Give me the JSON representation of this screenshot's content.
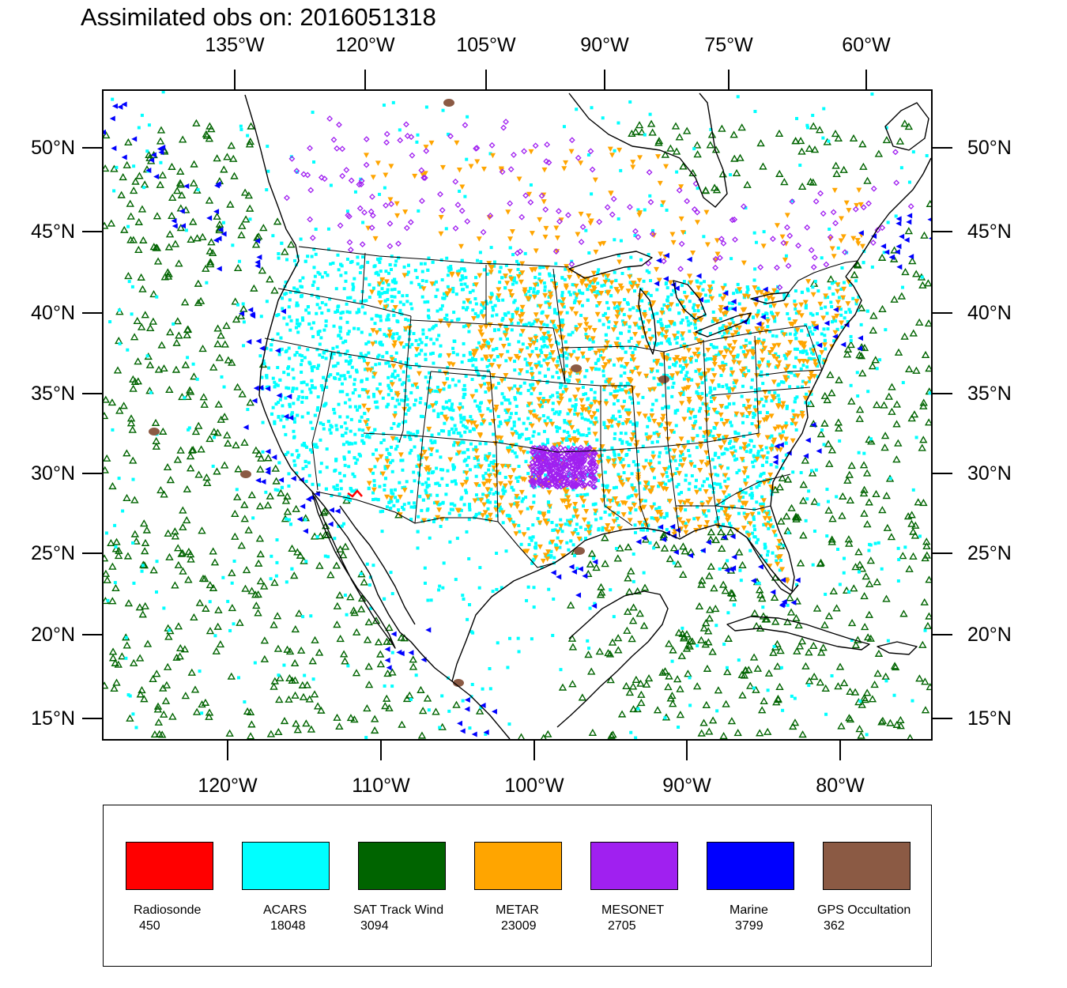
{
  "title": "Assimilated obs on: 2016051318",
  "top_lon_labels": [
    "135°W",
    "120°W",
    "105°W",
    "90°W",
    "75°W",
    "60°W"
  ],
  "bottom_lon_labels": [
    "120°W",
    "110°W",
    "100°W",
    "90°W",
    "80°W"
  ],
  "lat_labels": [
    "50°N",
    "45°N",
    "40°N",
    "35°N",
    "30°N",
    "25°N",
    "20°N",
    "15°N"
  ],
  "map_extent": {
    "lon_min": -127.5,
    "lon_max": -73.5,
    "lat_min": 14.0,
    "lat_max": 53.5,
    "projection": "lambert-conformal"
  },
  "legend": [
    {
      "name": "Radiosonde",
      "count": "450",
      "color": "#ff0000"
    },
    {
      "name": "ACARS",
      "count": "18048",
      "color": "#00ffff"
    },
    {
      "name": "SAT Track Wind",
      "count": "3094",
      "color": "#006400"
    },
    {
      "name": "METAR",
      "count": "23009",
      "color": "#ffa500"
    },
    {
      "name": "MESONET",
      "count": "2705",
      "color": "#a020f0"
    },
    {
      "name": "Marine",
      "count": "3799",
      "color": "#0000ff"
    },
    {
      "name": "GPS Occultation",
      "count": "362",
      "color": "#8b5a44"
    }
  ],
  "marker_shapes": {
    "Radiosonde": "red-squiggle",
    "ACARS": "cyan-square",
    "SAT Track Wind": "green-triangle-outline",
    "METAR": "orange-triangle-down",
    "MESONET": "purple-diamond",
    "Marine": "blue-triangle-left",
    "GPS Occultation": "brown-blob"
  }
}
